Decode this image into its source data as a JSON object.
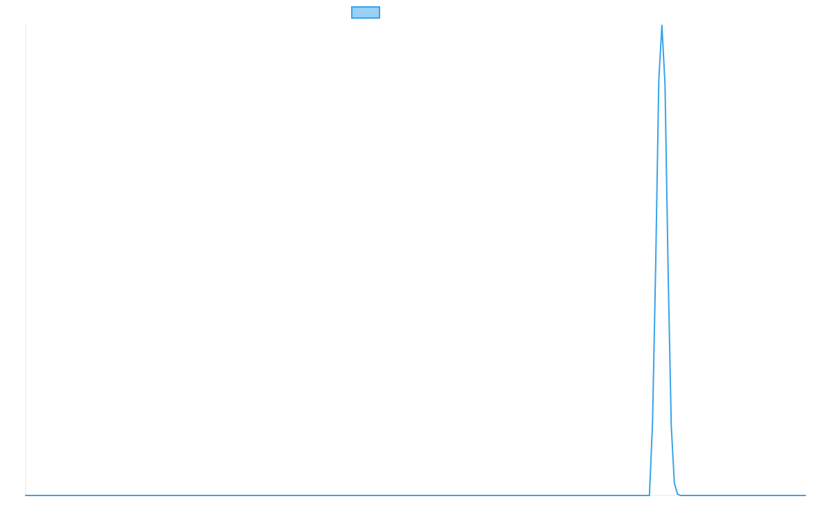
{
  "chart_data": {
    "type": "line",
    "title": "",
    "xlabel": "",
    "ylabel": "",
    "xlim": [
      0,
      1000
    ],
    "ylim": [
      0,
      1
    ],
    "grid": false,
    "legend": {
      "placement": "top-center",
      "entries": [
        {
          "name": "",
          "color": "#36a2eb",
          "fill": "#9ad0f5"
        }
      ]
    },
    "series": [
      {
        "name": "",
        "color": "#36a2eb",
        "x": [
          0,
          100,
          200,
          300,
          400,
          500,
          600,
          700,
          800,
          804,
          808,
          812,
          816,
          820,
          824,
          828,
          832,
          836,
          840,
          844,
          900,
          1000
        ],
        "values": [
          0,
          0,
          0,
          0,
          0,
          0,
          0,
          0,
          0,
          0.155,
          0.486,
          0.882,
          0.999,
          0.873,
          0.474,
          0.148,
          0.026,
          0.003,
          0,
          0,
          0,
          0
        ]
      }
    ]
  }
}
